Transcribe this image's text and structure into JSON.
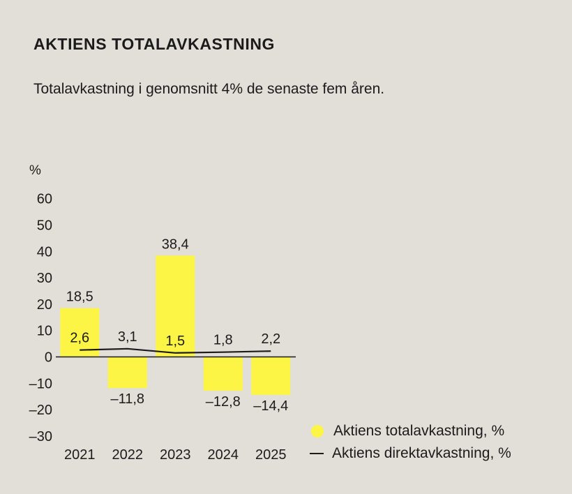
{
  "header": {
    "title": "AKTIENS TOTALAVKASTNING",
    "subtitle": "Totalavkastning i genomsnitt 4% de senaste fem åren."
  },
  "colors": {
    "background": "#e2ded8",
    "bar": "#fdf545",
    "line": "#1b1b1b"
  },
  "chart_data": {
    "type": "bar",
    "unit_label": "%",
    "categories": [
      "2021",
      "2022",
      "2023",
      "2024",
      "2025"
    ],
    "series": [
      {
        "name": "Aktiens totalavkastning, %",
        "type": "bar",
        "values": [
          18.5,
          -11.8,
          38.4,
          -12.8,
          -14.4
        ],
        "labels": [
          "18,5",
          "–11,8",
          "38,4",
          "–12,8",
          "–14,4"
        ]
      },
      {
        "name": "Aktiens direktavkastning, %",
        "type": "line",
        "values": [
          2.6,
          3.1,
          1.5,
          1.8,
          2.2
        ],
        "labels": [
          "2,6",
          "3,1",
          "1,5",
          "1,8",
          "2,2"
        ]
      }
    ],
    "yticks": [
      60,
      50,
      40,
      30,
      20,
      10,
      0,
      -10,
      -20,
      -30
    ],
    "ytick_labels": [
      "60",
      "50",
      "40",
      "30",
      "20",
      "10",
      "0",
      "–10",
      "–20",
      "–30"
    ],
    "ylim": [
      -30,
      60
    ],
    "grid": false,
    "legend_position": "bottom-right"
  }
}
